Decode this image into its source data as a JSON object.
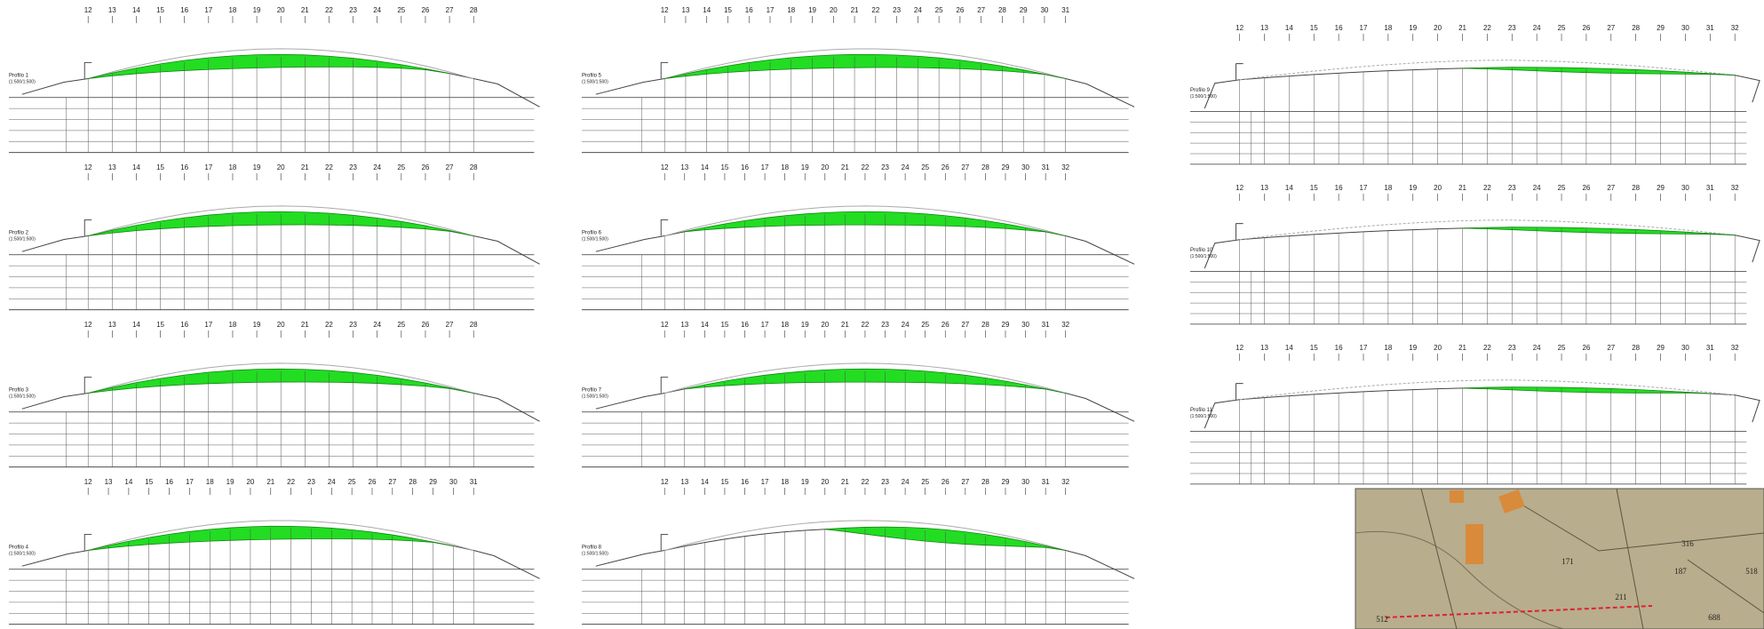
{
  "profiles": [
    {
      "title": "Profilo 1",
      "scale": "(1:500/1:500)",
      "stations": [
        12,
        13,
        14,
        15,
        16,
        17,
        18,
        19,
        20,
        21,
        22,
        23,
        24,
        25,
        26,
        27,
        28
      ]
    },
    {
      "title": "Profilo 2",
      "scale": "(1:500/1:500)",
      "stations": [
        12,
        13,
        14,
        15,
        16,
        17,
        18,
        19,
        20,
        21,
        22,
        23,
        24,
        25,
        26,
        27,
        28
      ]
    },
    {
      "title": "Profilo 3",
      "scale": "(1:500/1:500)",
      "stations": [
        12,
        13,
        14,
        15,
        16,
        17,
        18,
        19,
        20,
        21,
        22,
        23,
        24,
        25,
        26,
        27,
        28
      ]
    },
    {
      "title": "Profilo 4",
      "scale": "(1:500/1:500)",
      "stations": [
        12,
        13,
        14,
        15,
        16,
        17,
        18,
        19,
        20,
        21,
        22,
        23,
        24,
        25,
        26,
        27,
        28,
        29,
        30,
        31
      ]
    },
    {
      "title": "Profilo 5",
      "scale": "(1:500/1:500)",
      "stations": [
        12,
        13,
        14,
        15,
        16,
        17,
        18,
        19,
        20,
        21,
        22,
        23,
        24,
        25,
        26,
        27,
        28,
        29,
        30,
        31
      ]
    },
    {
      "title": "Profilo 6",
      "scale": "(1:500/1:500)",
      "stations": [
        12,
        13,
        14,
        15,
        16,
        17,
        18,
        19,
        20,
        21,
        22,
        23,
        24,
        25,
        26,
        27,
        28,
        29,
        30,
        31,
        32
      ]
    },
    {
      "title": "Profilo 7",
      "scale": "(1:500/1:500)",
      "stations": [
        12,
        13,
        14,
        15,
        16,
        17,
        18,
        19,
        20,
        21,
        22,
        23,
        24,
        25,
        26,
        27,
        28,
        29,
        30,
        31,
        32
      ]
    },
    {
      "title": "Profilo 8",
      "scale": "(1:500/1:500)",
      "stations": [
        12,
        13,
        14,
        15,
        16,
        17,
        18,
        19,
        20,
        21,
        22,
        23,
        24,
        25,
        26,
        27,
        28,
        29,
        30,
        31,
        32
      ]
    },
    {
      "title": "Profilo 9",
      "scale": "(1:500/1:500)",
      "stations": [
        12,
        13,
        14,
        15,
        16,
        17,
        18,
        19,
        20,
        21,
        22,
        23,
        24,
        25,
        26,
        27,
        28,
        29,
        30,
        31,
        32
      ]
    },
    {
      "title": "Profilo 10",
      "scale": "(1:500/1:500)",
      "stations": [
        12,
        13,
        14,
        15,
        16,
        17,
        18,
        19,
        20,
        21,
        22,
        23,
        24,
        25,
        26,
        27,
        28,
        29,
        30,
        31,
        32
      ]
    },
    {
      "title": "Profilo 11",
      "scale": "(1:500/1:500)",
      "stations": [
        12,
        13,
        14,
        15,
        16,
        17,
        18,
        19,
        20,
        21,
        22,
        23,
        24,
        25,
        26,
        27,
        28,
        29,
        30,
        31,
        32
      ]
    }
  ],
  "map": {
    "labels": [
      "171",
      "316",
      "187",
      "518",
      "211",
      "512",
      "688"
    ]
  }
}
